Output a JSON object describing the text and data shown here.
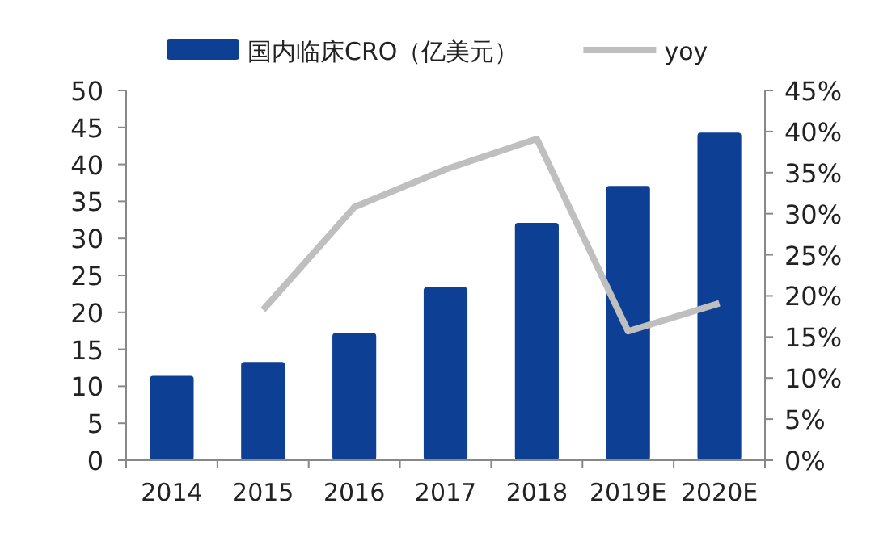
{
  "chart_data": {
    "type": "bar",
    "categories": [
      "2014",
      "2015",
      "2016",
      "2017",
      "2018",
      "2019E",
      "2020E"
    ],
    "series": [
      {
        "name": "国内临床CRO（亿美元）",
        "color": "#0d3f94",
        "values": [
          11.4,
          13.3,
          17.2,
          23.4,
          32.1,
          37.1,
          44.3
        ]
      },
      {
        "name": "yoy",
        "type": "line",
        "axis": "y2",
        "color": "#bfbfbf",
        "values": [
          null,
          18.3,
          30.8,
          35.4,
          39.1,
          15.7,
          19.1
        ]
      }
    ],
    "ylim": [
      0,
      50
    ],
    "yticks": [
      0,
      5,
      10,
      15,
      20,
      25,
      30,
      35,
      40,
      45,
      50
    ],
    "y2lim": [
      0,
      45
    ],
    "y2ticks": [
      {
        "value": 0,
        "label": "0%"
      },
      {
        "value": 5,
        "label": "5%"
      },
      {
        "value": 10,
        "label": "10%"
      },
      {
        "value": 15,
        "label": "15%"
      },
      {
        "value": 20,
        "label": "20%"
      },
      {
        "value": 25,
        "label": "25%"
      },
      {
        "value": 30,
        "label": "30%"
      },
      {
        "value": 35,
        "label": "35%"
      },
      {
        "value": 40,
        "label": "40%"
      },
      {
        "value": 45,
        "label": "45%"
      }
    ],
    "legend": "top",
    "grid": false
  }
}
